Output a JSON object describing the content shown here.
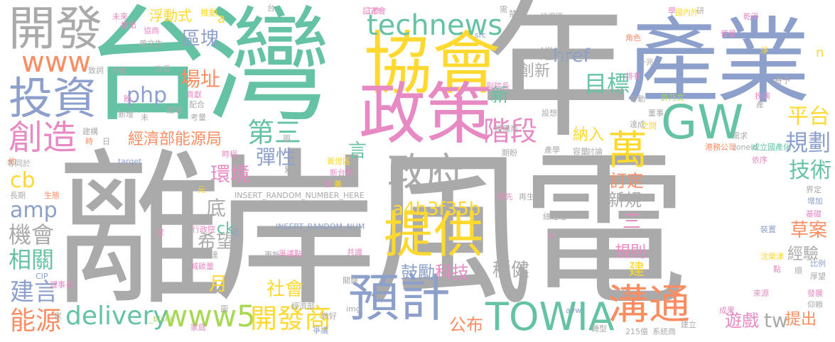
{
  "words": [
    {
      "text": "離岸風電",
      "color": "#aaaaaa"
    },
    {
      "text": "台灣",
      "color": "#66c2a5"
    },
    {
      "text": "年",
      "color": "#aaaaaa"
    },
    {
      "text": "產業",
      "color": "#8da0cb"
    },
    {
      "text": "協會",
      "color": "#ffd92f"
    },
    {
      "text": "政策",
      "color": "#e78ac3"
    },
    {
      "text": "開發",
      "color": "#aaaaaa"
    },
    {
      "text": "投資",
      "color": "#8da0cb"
    },
    {
      "text": "technews",
      "color": "#66c2a5"
    },
    {
      "text": "GW",
      "color": "#66c2a5"
    },
    {
      "text": "政府",
      "color": "#aaaaaa"
    },
    {
      "text": "提供",
      "color": "#ffd92f"
    },
    {
      "text": "預計",
      "color": "#8da0cb"
    },
    {
      "text": "TOWIA",
      "color": "#66c2a5"
    },
    {
      "text": "溝通",
      "color": "#fc8d62"
    },
    {
      "text": "創造",
      "color": "#e78ac3"
    },
    {
      "text": "www",
      "color": "#fc8d62"
    },
    {
      "text": "www5",
      "color": "#a6d854"
    },
    {
      "text": "delivery",
      "color": "#66c2a5"
    },
    {
      "text": "開發商",
      "color": "#ffd92f"
    },
    {
      "text": "能源",
      "color": "#fc8d62"
    },
    {
      "text": "建言",
      "color": "#8da0cb"
    },
    {
      "text": "相關",
      "color": "#66c2a5"
    },
    {
      "text": "機會",
      "color": "#aaaaaa"
    },
    {
      "text": "amp",
      "color": "#8da0cb"
    },
    {
      "text": "cb",
      "color": "#ffd92f"
    },
    {
      "text": "萬",
      "color": "#ffd92f"
    },
    {
      "text": "階段",
      "color": "#e78ac3"
    },
    {
      "text": "第三",
      "color": "#66c2a5"
    },
    {
      "text": "目標",
      "color": "#66c2a5"
    },
    {
      "text": "平台",
      "color": "#ffd92f"
    },
    {
      "text": "規劃",
      "color": "#8da0cb"
    },
    {
      "text": "技術",
      "color": "#66c2a5"
    },
    {
      "text": "經濟部能源局",
      "color": "#fc8d62"
    },
    {
      "text": "php",
      "color": "#8da0cb"
    },
    {
      "text": "浮動式",
      "color": "#ffd92f"
    },
    {
      "text": "區塊",
      "color": "#8da0cb"
    },
    {
      "text": "場址",
      "color": "#fc8d62"
    },
    {
      "text": "href",
      "color": "#8da0cb"
    },
    {
      "text": "遴選",
      "color": "#aaaaaa"
    },
    {
      "text": "創新",
      "color": "#aaaaaa"
    },
    {
      "text": "彈性",
      "color": "#8da0cb"
    },
    {
      "text": "環境",
      "color": "#e78ac3"
    },
    {
      "text": "a4b3f35b",
      "color": "#ffd92f"
    },
    {
      "text": "訂定",
      "color": "#fc8d62"
    },
    {
      "text": "新規",
      "color": "#aaaaaa"
    },
    {
      "text": "草案",
      "color": "#fc8d62"
    },
    {
      "text": "經驗",
      "color": "#aaaaaa"
    },
    {
      "text": "規則",
      "color": "#e78ac3"
    },
    {
      "text": "社會",
      "color": "#ffd92f"
    },
    {
      "text": "鼓勵",
      "color": "#8da0cb"
    },
    {
      "text": "科技",
      "color": "#e78ac3"
    },
    {
      "text": "穩健",
      "color": "#aaaaaa"
    },
    {
      "text": "公布",
      "color": "#fc8d62"
    },
    {
      "text": "遊戲",
      "color": "#e78ac3"
    },
    {
      "text": "tw",
      "color": "#aaaaaa"
    },
    {
      "text": "提出",
      "color": "#fc8d62"
    },
    {
      "text": "希望",
      "color": "#aaaaaa"
    },
    {
      "text": "ck",
      "color": "#66c2a5"
    },
    {
      "text": "底",
      "color": "#aaaaaa"
    },
    {
      "text": "月",
      "color": "#ffd92f"
    },
    {
      "text": "言",
      "color": "#66c2a5"
    },
    {
      "text": "新",
      "color": "#66c2a5"
    },
    {
      "text": "三",
      "color": "#e78ac3"
    },
    {
      "text": "建",
      "color": "#ffd92f"
    },
    {
      "text": "納入",
      "color": "#ffd92f"
    },
    {
      "text": "a",
      "color": "#ffd92f"
    },
    {
      "text": "推動",
      "color": "#ffd92f"
    },
    {
      "text": "n",
      "color": "#ffd92f"
    },
    {
      "text": "INSERT_RANDOM_NUMBER_HERE",
      "color": "#aaaaaa"
    },
    {
      "text": "INSERT_RANDOM_NUM",
      "color": "#8da0cb"
    },
    {
      "text": "target",
      "color": "#8da0cb"
    },
    {
      "text": "zoneid",
      "color": "#aaaaaa"
    },
    {
      "text": "src",
      "color": "#8da0cb"
    },
    {
      "text": "_blank",
      "color": "#a6d854"
    },
    {
      "text": "img",
      "color": "#aaaaaa"
    },
    {
      "text": "avw",
      "color": "#8da0cb"
    },
    {
      "text": "CIP",
      "color": "#8da0cb"
    },
    {
      "text": "215億",
      "color": "#aaaaaa"
    },
    {
      "text": "系統商",
      "color": "#aaaaaa"
    },
    {
      "text": "港務公司",
      "color": "#fc8d62"
    },
    {
      "text": "成立國產化",
      "color": "#66c2a5"
    },
    {
      "text": "許乃文",
      "color": "#a6d854"
    },
    {
      "text": "經濟部",
      "color": "#aaaaaa"
    },
    {
      "text": "新台幣",
      "color": "#e78ac3"
    },
    {
      "text": "黃燈區",
      "color": "#ffd92f"
    },
    {
      "text": "紅燈區",
      "color": "#aaaaaa"
    },
    {
      "text": "國內外",
      "color": "#ffd92f"
    },
    {
      "text": "記者會",
      "color": "#e78ac3"
    },
    {
      "text": "設備商",
      "color": "#aaaaaa"
    },
    {
      "text": "副院長",
      "color": "#e78ac3"
    },
    {
      "text": "延長到",
      "color": "#aaaaaa"
    },
    {
      "text": "行政院",
      "color": "#e78ac3"
    },
    {
      "text": "理事長",
      "color": "#e78ac3"
    },
    {
      "text": "總經理",
      "color": "#aaaaaa"
    },
    {
      "text": "曾文生",
      "color": "#aaaaaa"
    },
    {
      "text": "爭議點",
      "color": "#e78ac3"
    },
    {
      "text": "沈榮津",
      "color": "#ffd92f"
    },
    {
      "text": "投資額",
      "color": "#aaaaaa"
    },
    {
      "text": "減碳量",
      "color": "#e78ac3"
    },
    {
      "text": "等同於",
      "color": "#aaaaaa"
    },
    {
      "text": "再生",
      "color": "#aaaaaa"
    },
    {
      "text": "原先",
      "color": "#e78ac3"
    },
    {
      "text": "共識",
      "color": "#e78ac3"
    },
    {
      "text": "更新",
      "color": "#aaaaaa"
    },
    {
      "text": "轉型",
      "color": "#aaaaaa"
    },
    {
      "text": "建立",
      "color": "#aaaaaa"
    },
    {
      "text": "成果",
      "color": "#e78ac3"
    },
    {
      "text": "仰賴",
      "color": "#aaaaaa"
    },
    {
      "text": "發展",
      "color": "#e78ac3"
    },
    {
      "text": "來源",
      "color": "#e78ac3"
    },
    {
      "text": "厚望",
      "color": "#aaaaaa"
    },
    {
      "text": "比例",
      "color": "#8da0cb"
    },
    {
      "text": "增加",
      "color": "#8da0cb"
    },
    {
      "text": "基礎",
      "color": "#e78ac3"
    },
    {
      "text": "界定",
      "color": "#aaaaaa"
    },
    {
      "text": "依序",
      "color": "#e78ac3"
    },
    {
      "text": "需求",
      "color": "#aaaaaa"
    },
    {
      "text": "討論",
      "color": "#aaaaaa"
    },
    {
      "text": "產學",
      "color": "#aaaaaa"
    },
    {
      "text": "期盼",
      "color": "#aaaaaa"
    },
    {
      "text": "容量",
      "color": "#aaaaaa"
    },
    {
      "text": "達成",
      "color": "#aaaaaa"
    },
    {
      "text": "董事",
      "color": "#aaaaaa"
    },
    {
      "text": "之間",
      "color": "#ffd92f"
    },
    {
      "text": "帶動",
      "color": "#aaaaaa"
    },
    {
      "text": "設想",
      "color": "#aaaaaa"
    },
    {
      "text": "排有",
      "color": "#e78ac3"
    },
    {
      "text": "一兆",
      "color": "#aaaaaa"
    },
    {
      "text": "角色",
      "color": "#fc8d62"
    },
    {
      "text": "使是",
      "color": "#e78ac3"
    },
    {
      "text": "乾淨",
      "color": "#e78ac3"
    },
    {
      "text": "寄予",
      "color": "#aaaaaa"
    },
    {
      "text": "扮演",
      "color": "#e78ac3"
    },
    {
      "text": "研",
      "color": "#aaaaaa"
    },
    {
      "text": "學",
      "color": "#e78ac3"
    },
    {
      "text": "需",
      "color": "#aaaaaa"
    },
    {
      "text": "禁止",
      "color": "#aaaaaa"
    },
    {
      "text": "工作",
      "color": "#e78ac3"
    },
    {
      "text": "台",
      "color": "#aaaaaa"
    },
    {
      "text": "協商",
      "color": "#e78ac3"
    },
    {
      "text": "未來",
      "color": "#e78ac3"
    },
    {
      "text": "致詞",
      "color": "#aaaaaa"
    },
    {
      "text": "大會",
      "color": "#aaaaaa"
    },
    {
      "text": "次長",
      "color": "#aaaaaa"
    },
    {
      "text": "新增",
      "color": "#aaaaaa"
    },
    {
      "text": "風場",
      "color": "#aaaaaa"
    },
    {
      "text": "貢獻",
      "color": "#e78ac3"
    },
    {
      "text": "配合",
      "color": "#aaaaaa"
    },
    {
      "text": "考量",
      "color": "#aaaaaa"
    },
    {
      "text": "建構",
      "color": "#aaaaaa"
    },
    {
      "text": "時程",
      "color": "#e78ac3"
    },
    {
      "text": "累計",
      "color": "#aaaaaa"
    },
    {
      "text": "長期",
      "color": "#aaaaaa"
    },
    {
      "text": "生態",
      "color": "#fc8d62"
    },
    {
      "text": "爭議",
      "color": "#8da0cb"
    },
    {
      "text": "家庭",
      "color": "#e78ac3"
    },
    {
      "text": "做好",
      "color": "#aaaaaa"
    },
    {
      "text": "關鍵",
      "color": "#aaaaaa"
    },
    {
      "text": "裝置",
      "color": "#8da0cb"
    },
    {
      "text": "點",
      "color": "#e78ac3"
    },
    {
      "text": "家",
      "color": "#aaaaaa"
    },
    {
      "text": "官",
      "color": "#aaaaaa"
    },
    {
      "text": "度",
      "color": "#e78ac3"
    },
    {
      "text": "元",
      "color": "#ffd92f"
    },
    {
      "text": "時",
      "color": "#fc8d62"
    },
    {
      "text": "日",
      "color": "#aaaaaa"
    },
    {
      "text": "約",
      "color": "#fc8d62"
    },
    {
      "text": "未",
      "color": "#aaaaaa"
    },
    {
      "text": "盼",
      "color": "#e78ac3"
    },
    {
      "text": "圖",
      "color": "#aaaaaa"
    },
    {
      "text": "產",
      "color": "#aaaaaa"
    },
    {
      "text": "淨",
      "color": "#ffd92f"
    },
    {
      "text": "戶",
      "color": "#e78ac3"
    },
    {
      "text": "順",
      "color": "#aaaaaa"
    },
    {
      "text": "近",
      "color": "#8da0cb"
    },
    {
      "text": "達",
      "color": "#aaaaaa"
    },
    {
      "text": "指出",
      "color": "#e78ac3"
    },
    {
      "text": "跟",
      "color": "#aaaaaa"
    },
    {
      "text": "兼",
      "color": "#ffd92f"
    },
    {
      "text": "音",
      "color": "#e78ac3"
    },
    {
      "text": "蓋",
      "color": "#e78ac3"
    }
  ]
}
